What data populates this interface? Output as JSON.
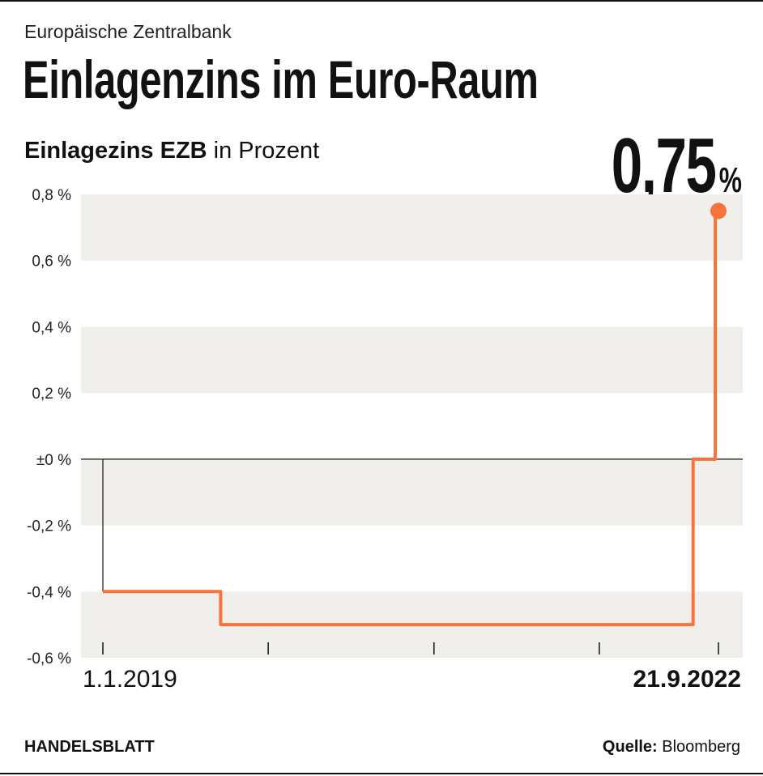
{
  "header": {
    "kicker": "Europäische Zentralbank",
    "title": "Einlagenzins im Euro-Raum"
  },
  "subtitle": {
    "bold": "Einlagezins EZB",
    "rest": " in Prozent"
  },
  "highlight": {
    "value": "0,75",
    "unit": "%"
  },
  "footer": {
    "brand": "HANDELSBLATT",
    "source_label": "Quelle:",
    "source": " Bloomberg"
  },
  "colors": {
    "line": "#F7733A",
    "band": "#F0EFEB",
    "axis": "#111111"
  },
  "chart_data": {
    "type": "line",
    "step": true,
    "title": "Einlagezins EZB",
    "ylabel": "in Prozent",
    "ylim": [
      -0.6,
      0.8
    ],
    "xlim": [
      "2019-01-01",
      "2022-09-21"
    ],
    "yticks": [
      {
        "value": 0.8,
        "label": "0,8 %"
      },
      {
        "value": 0.6,
        "label": "0,6 %"
      },
      {
        "value": 0.4,
        "label": "0,4 %"
      },
      {
        "value": 0.2,
        "label": "0,2 %"
      },
      {
        "value": 0.0,
        "label": "±0 %"
      },
      {
        "value": -0.2,
        "label": "-0,2 %"
      },
      {
        "value": -0.4,
        "label": "-0,4 %"
      },
      {
        "value": -0.6,
        "label": "-0,6 %"
      }
    ],
    "xticks": [
      "2019-01-01",
      "2020-01-01",
      "2021-01-01",
      "2022-01-01",
      "2022-09-21"
    ],
    "xtick_labels": {
      "start": "1.1.2019",
      "end": "21.9.2022"
    },
    "grid": "alternating horizontal bands",
    "series": [
      {
        "points": [
          [
            "2019-01-01",
            -0.4
          ],
          [
            "2019-09-18",
            -0.5
          ],
          [
            "2022-07-27",
            0.0
          ],
          [
            "2022-09-14",
            0.75
          ],
          [
            "2022-09-21",
            0.75
          ]
        ]
      }
    ]
  }
}
